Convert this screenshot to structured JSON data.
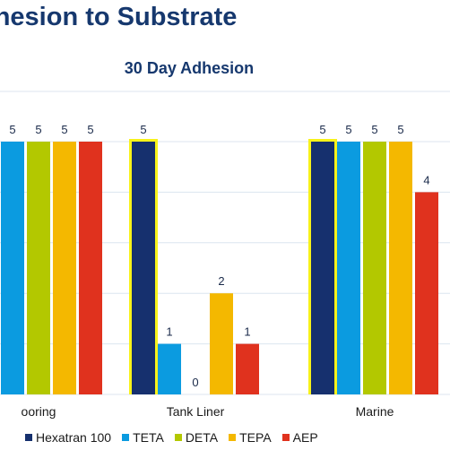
{
  "slide": {
    "title": "dhesion to Substrate"
  },
  "chart_data": {
    "type": "bar",
    "title": "30 Day Adhesion",
    "categories": [
      "ooring",
      "Tank Liner",
      "Marine"
    ],
    "series": [
      {
        "name": "Hexatran 100",
        "color": "#16306e",
        "values": [
          5,
          5,
          5
        ]
      },
      {
        "name": "TETA",
        "color": "#0b9be0",
        "values": [
          5,
          1,
          5
        ]
      },
      {
        "name": "DETA",
        "color": "#b3c800",
        "values": [
          5,
          0,
          5
        ]
      },
      {
        "name": "TEPA",
        "color": "#f4b800",
        "values": [
          5,
          2,
          5
        ]
      },
      {
        "name": "AEP",
        "color": "#e0321e",
        "values": [
          5,
          1,
          4
        ]
      }
    ],
    "ylim": [
      0,
      5
    ],
    "grid": true,
    "legend_position": "bottom",
    "highlight": {
      "color": "#f7f21a",
      "series": "Hexatran 100",
      "categories": [
        "Tank Liner",
        "Marine"
      ]
    }
  }
}
